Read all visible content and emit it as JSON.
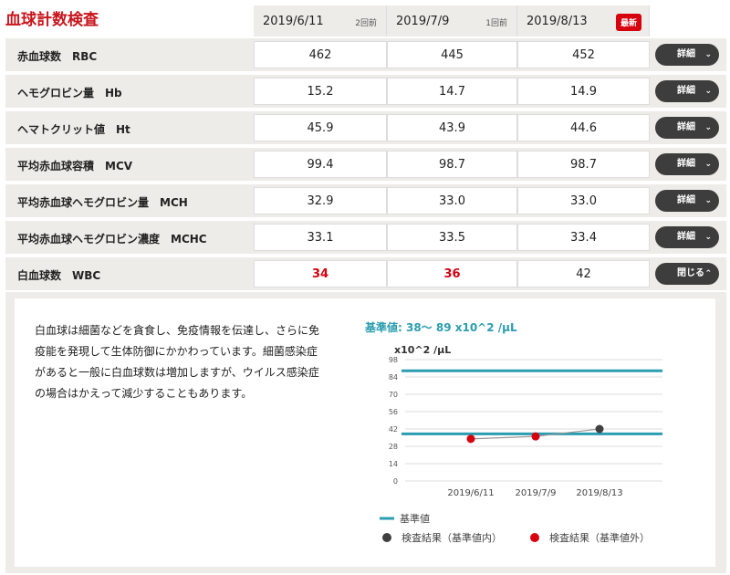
{
  "title": "血球計数検査",
  "dates": [
    {
      "date": "2019/6/11",
      "tag": "2回前"
    },
    {
      "date": "2019/7/9",
      "tag": "1回前"
    },
    {
      "date": "2019/8/13",
      "tag": "最新"
    }
  ],
  "rows": [
    {
      "label": "赤血球数　RBC",
      "values": [
        "462",
        "445",
        "452"
      ],
      "out": [
        false,
        false,
        false
      ],
      "button": "詳細",
      "icon": "chevron-down"
    },
    {
      "label": "ヘモグロビン量　Hb",
      "values": [
        "15.2",
        "14.7",
        "14.9"
      ],
      "out": [
        false,
        false,
        false
      ],
      "button": "詳細",
      "icon": "chevron-down"
    },
    {
      "label": "ヘマトクリット値　Ht",
      "values": [
        "45.9",
        "43.9",
        "44.6"
      ],
      "out": [
        false,
        false,
        false
      ],
      "button": "詳細",
      "icon": "chevron-down"
    },
    {
      "label": "平均赤血球容積　MCV",
      "values": [
        "99.4",
        "98.7",
        "98.7"
      ],
      "out": [
        false,
        false,
        false
      ],
      "button": "詳細",
      "icon": "chevron-down"
    },
    {
      "label": "平均赤血球ヘモグロビン量　MCH",
      "values": [
        "32.9",
        "33.0",
        "33.0"
      ],
      "out": [
        false,
        false,
        false
      ],
      "button": "詳細",
      "icon": "chevron-down"
    },
    {
      "label": "平均赤血球ヘモグロビン濃度　MCHC",
      "values": [
        "33.1",
        "33.5",
        "33.4"
      ],
      "out": [
        false,
        false,
        false
      ],
      "button": "詳細",
      "icon": "chevron-down"
    },
    {
      "label": "白血球数　WBC",
      "values": [
        "34",
        "36",
        "42"
      ],
      "out": [
        true,
        true,
        false
      ],
      "button": "閉じる",
      "icon": "chevron-up"
    }
  ],
  "detail": {
    "description": "白血球は細菌などを貪食し、免疫情報を伝達し、さらに免疫能を発現して生体防御にかかわっています。細菌感染症があると一般に白血球数は増加しますが、ウイルス感染症の場合はかえって減少することもあります。",
    "reference": "基準値: 38〜 89 x10^2 /μL"
  },
  "chart_data": {
    "type": "line",
    "ylabel": "x10^2 /μL",
    "categories": [
      "2019/6/11",
      "2019/7/9",
      "2019/8/13"
    ],
    "values": [
      34,
      36,
      42
    ],
    "ylim": [
      0,
      98
    ],
    "yticks": [
      0,
      14,
      28,
      42,
      56,
      70,
      84,
      98
    ],
    "reference_range": [
      38,
      89
    ],
    "grid": true,
    "legend_position": "bottom",
    "legend": [
      "基準値",
      "検査結果（基準値内）",
      "検査結果（基準値外）"
    ],
    "colors": {
      "reference": "#2a9db0",
      "in_range": "#404040",
      "out_of_range": "#d7000f",
      "line": "#999999"
    }
  }
}
